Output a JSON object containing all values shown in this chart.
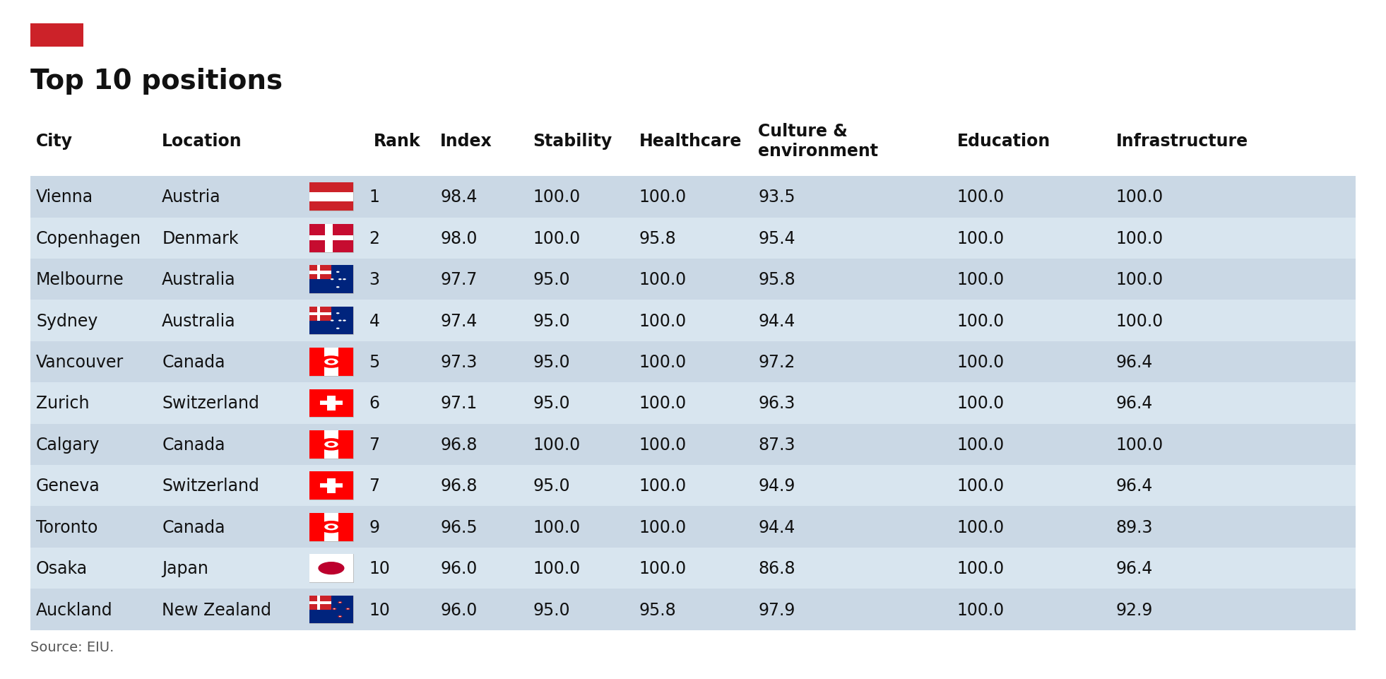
{
  "title": "Top 10 positions",
  "red_bar_color": "#CC2229",
  "row_bg_odd": "#cad8e5",
  "row_bg_even": "#d8e5ef",
  "source_text": "Source: EIU.",
  "rows": [
    [
      "Vienna",
      "Austria",
      "Austria",
      "1",
      "98.4",
      "100.0",
      "100.0",
      "93.5",
      "100.0",
      "100.0"
    ],
    [
      "Copenhagen",
      "Denmark",
      "Denmark",
      "2",
      "98.0",
      "100.0",
      "95.8",
      "95.4",
      "100.0",
      "100.0"
    ],
    [
      "Melbourne",
      "Australia",
      "Australia",
      "3",
      "97.7",
      "95.0",
      "100.0",
      "95.8",
      "100.0",
      "100.0"
    ],
    [
      "Sydney",
      "Australia",
      "Australia",
      "4",
      "97.4",
      "95.0",
      "100.0",
      "94.4",
      "100.0",
      "100.0"
    ],
    [
      "Vancouver",
      "Canada",
      "Canada",
      "5",
      "97.3",
      "95.0",
      "100.0",
      "97.2",
      "100.0",
      "96.4"
    ],
    [
      "Zurich",
      "Switzerland",
      "Switzerland",
      "6",
      "97.1",
      "95.0",
      "100.0",
      "96.3",
      "100.0",
      "96.4"
    ],
    [
      "Calgary",
      "Canada",
      "Canada",
      "7",
      "96.8",
      "100.0",
      "100.0",
      "87.3",
      "100.0",
      "100.0"
    ],
    [
      "Geneva",
      "Switzerland",
      "Switzerland",
      "7",
      "96.8",
      "95.0",
      "100.0",
      "94.9",
      "100.0",
      "96.4"
    ],
    [
      "Toronto",
      "Canada",
      "Canada",
      "9",
      "96.5",
      "100.0",
      "100.0",
      "94.4",
      "100.0",
      "89.3"
    ],
    [
      "Osaka",
      "Japan",
      "Japan",
      "10",
      "96.0",
      "100.0",
      "100.0",
      "86.8",
      "100.0",
      "96.4"
    ],
    [
      "Auckland",
      "New Zealand",
      "New Zealand",
      "10",
      "96.0",
      "95.0",
      "95.8",
      "97.9",
      "100.0",
      "92.9"
    ]
  ],
  "header_labels": [
    "City",
    "Location",
    "",
    "Rank",
    "Index",
    "Stability",
    "Healthcare",
    "Culture &\nenvironment",
    "Education",
    "Infrastructure"
  ],
  "col_rel": [
    0.0,
    0.095,
    0.205,
    0.255,
    0.305,
    0.375,
    0.455,
    0.545,
    0.695,
    0.815
  ],
  "title_fontsize": 28,
  "header_fontsize": 17,
  "cell_fontsize": 17,
  "source_fontsize": 14,
  "background_color": "#ffffff"
}
